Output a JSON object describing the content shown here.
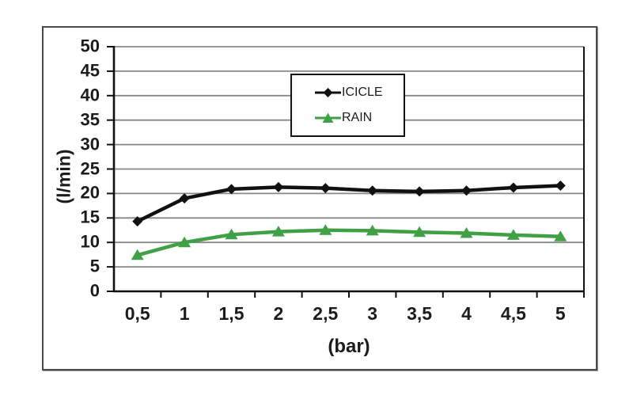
{
  "chart_data": {
    "type": "line",
    "title": "",
    "xlabel": "(bar)",
    "ylabel": "(l/min)",
    "x_tick_labels": [
      "0,5",
      "1",
      "1,5",
      "2",
      "2,5",
      "3",
      "3,5",
      "4",
      "4,5",
      "5"
    ],
    "x_values": [
      0.5,
      1,
      1.5,
      2,
      2.5,
      3,
      3.5,
      4,
      4.5,
      5
    ],
    "ylim": [
      0,
      50
    ],
    "y_tick_step": 5,
    "y_tick_labels": [
      "0",
      "5",
      "10",
      "15",
      "20",
      "25",
      "30",
      "35",
      "40",
      "45",
      "50"
    ],
    "grid": true,
    "legend_position": "inside-top-center-boxed",
    "series": [
      {
        "name": "ICICLE",
        "color": "#111111",
        "marker": "diamond",
        "values": [
          14.3,
          19.0,
          20.9,
          21.3,
          21.1,
          20.6,
          20.4,
          20.6,
          21.2,
          21.6
        ]
      },
      {
        "name": "RAIN",
        "color": "#3fa045",
        "marker": "triangle",
        "values": [
          7.4,
          10.0,
          11.6,
          12.2,
          12.5,
          12.4,
          12.1,
          11.9,
          11.5,
          11.2
        ]
      }
    ]
  },
  "colors": {
    "gridline": "#878787",
    "axis": "#111111",
    "frame_border": "#4a4a4a",
    "plot_background": "#ffffff",
    "text": "#1c1c1c"
  }
}
